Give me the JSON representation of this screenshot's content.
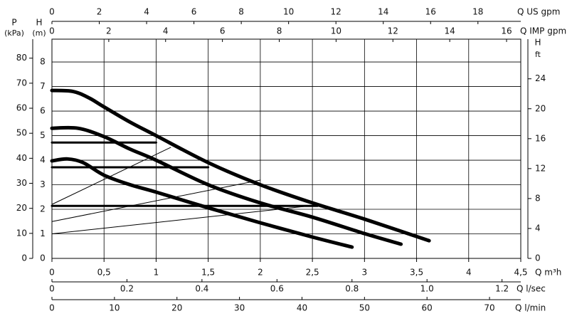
{
  "chart_data": {
    "type": "line",
    "grid": true,
    "x_axes": [
      {
        "label": "Q US gpm",
        "lim": [
          0,
          19.81
        ],
        "ticks": [
          0,
          2,
          4,
          6,
          8,
          10,
          12,
          14,
          16,
          18
        ]
      },
      {
        "label": "Q IMP gpm",
        "lim": [
          0,
          16.5
        ],
        "ticks": [
          0,
          2,
          4,
          6,
          8,
          10,
          12,
          14,
          16
        ]
      },
      {
        "label": "Q m³h",
        "lim": [
          0,
          4.5
        ],
        "ticks": [
          0,
          {
            "value": 0.5,
            "label": "0,5"
          },
          1,
          {
            "value": 1.5,
            "label": "1,5"
          },
          2,
          {
            "value": 2.5,
            "label": "2,5"
          },
          3,
          {
            "value": 3.5,
            "label": "3,5"
          },
          4,
          {
            "value": 4.5,
            "label": "4,5"
          }
        ]
      },
      {
        "label": "Q l/sec",
        "lim": [
          0,
          1.25
        ],
        "ticks": [
          0,
          0.2,
          0.4,
          0.6,
          0.8,
          {
            "value": 1,
            "label": "1.0"
          },
          1.2
        ]
      },
      {
        "label": "Q l/min",
        "lim": [
          0,
          75
        ],
        "ticks": [
          0,
          10,
          20,
          30,
          40,
          50,
          60,
          70
        ]
      }
    ],
    "y_axes": [
      {
        "title": "P",
        "unit": "(kPa)",
        "lim": [
          0,
          87.6
        ],
        "ticks": [
          0,
          10,
          20,
          30,
          40,
          50,
          60,
          70,
          80
        ]
      },
      {
        "title": "H",
        "unit": "(m)",
        "lim": [
          0,
          8.93
        ],
        "ticks": [
          0,
          1,
          2,
          3,
          4,
          5,
          6,
          7,
          8
        ]
      },
      {
        "title": "H",
        "unit": "ft",
        "lim": [
          0,
          29.3
        ],
        "ticks": [
          0,
          4,
          8,
          12,
          16,
          20,
          24
        ]
      }
    ],
    "series": [
      {
        "color": "#000000",
        "line_width": 5,
        "x": [
          0,
          0.2,
          0.35,
          0.5,
          0.75,
          1,
          1.5,
          2,
          2.5,
          3,
          3.62
        ],
        "values": [
          6.84,
          6.8,
          6.55,
          6.17,
          5.55,
          5.0,
          3.9,
          3.0,
          2.26,
          1.6,
          0.72
        ]
      },
      {
        "color": "#000000",
        "line_width": 5,
        "x": [
          0,
          0.25,
          0.5,
          0.75,
          1,
          1.5,
          2,
          2.5,
          3,
          3.35
        ],
        "values": [
          5.3,
          5.3,
          4.96,
          4.45,
          4.0,
          3.0,
          2.26,
          1.68,
          1.01,
          0.58
        ]
      },
      {
        "color": "#000000",
        "line_width": 5,
        "x": [
          0,
          0.15,
          0.3,
          0.5,
          0.75,
          1,
          1.5,
          2,
          2.5,
          2.88
        ],
        "values": [
          3.97,
          4.05,
          3.9,
          3.39,
          3.0,
          2.7,
          2.06,
          1.45,
          0.87,
          0.46
        ]
      },
      {
        "color": "#000000",
        "line_width": 3,
        "x": [
          0,
          1.0
        ],
        "values": [
          4.72,
          4.72
        ]
      },
      {
        "color": "#000000",
        "line_width": 3,
        "x": [
          0,
          1.5
        ],
        "values": [
          3.71,
          3.71
        ]
      },
      {
        "color": "#000000",
        "line_width": 3,
        "x": [
          0,
          2.55
        ],
        "values": [
          2.14,
          2.14
        ]
      },
      {
        "color": "#000000",
        "line_width": 1,
        "x": [
          0,
          1.14
        ],
        "values": [
          2.2,
          4.52
        ]
      },
      {
        "color": "#000000",
        "line_width": 1,
        "x": [
          0,
          2.0
        ],
        "values": [
          1.5,
          3.19
        ]
      },
      {
        "color": "#000000",
        "line_width": 1,
        "x": [
          0,
          2.54
        ],
        "values": [
          1.0,
          2.17
        ]
      }
    ]
  }
}
